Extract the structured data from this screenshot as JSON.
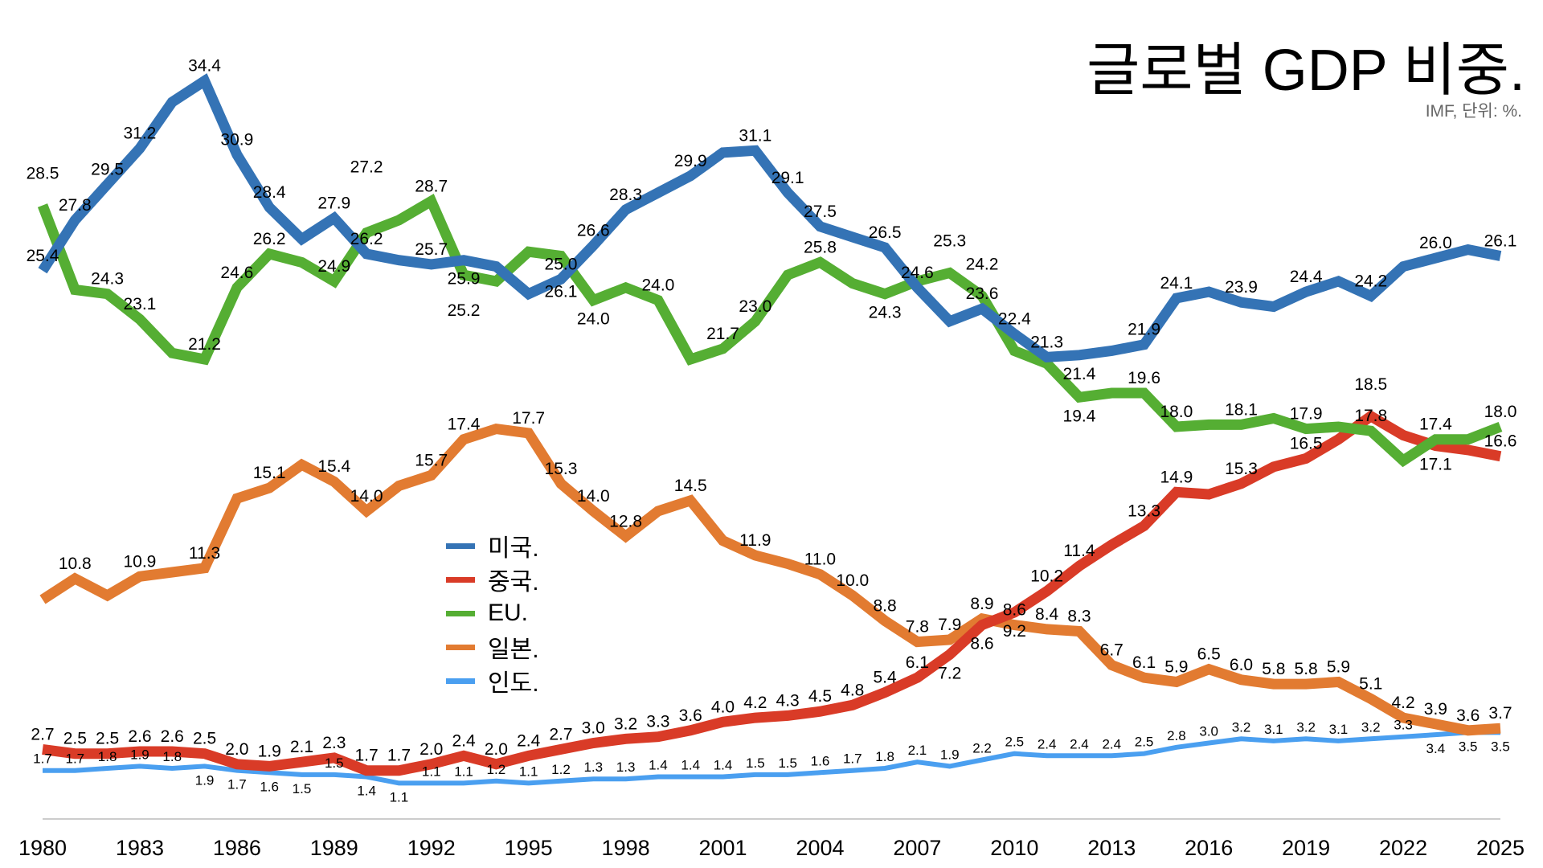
{
  "chart_data": {
    "type": "line",
    "title": "글로벌 GDP 비중.",
    "subtitle": "IMF, 단위: %.",
    "xlabel": "",
    "ylabel": "",
    "x": [
      1980,
      1981,
      1982,
      1983,
      1984,
      1985,
      1986,
      1987,
      1988,
      1989,
      1990,
      1991,
      1992,
      1993,
      1994,
      1995,
      1996,
      1997,
      1998,
      1999,
      2000,
      2001,
      2002,
      2003,
      2004,
      2005,
      2006,
      2007,
      2008,
      2009,
      2010,
      2011,
      2012,
      2013,
      2014,
      2015,
      2016,
      2017,
      2018,
      2019,
      2020,
      2021,
      2022,
      2023,
      2024,
      2025
    ],
    "xticks": [
      "1980",
      "1983",
      "1986",
      "1989",
      "1992",
      "1995",
      "1998",
      "2001",
      "2004",
      "2007",
      "2010",
      "2013",
      "2016",
      "2019",
      "2022",
      "2025"
    ],
    "xlim": [
      1980,
      2025
    ],
    "ylim": [
      -0.6,
      36.6
    ],
    "grid": false,
    "legend_position": "center-left",
    "series": [
      {
        "name": "미국.",
        "color": "#3473b5",
        "width": "thick",
        "values": [
          25.4,
          27.8,
          29.5,
          31.2,
          33.4,
          34.4,
          30.9,
          28.4,
          26.9,
          27.9,
          26.2,
          25.9,
          25.7,
          25.9,
          25.6,
          24.3,
          25.0,
          26.6,
          28.3,
          29.1,
          29.9,
          31.0,
          31.1,
          29.1,
          27.5,
          27.0,
          26.5,
          24.6,
          23.0,
          23.6,
          22.4,
          21.3,
          21.4,
          21.6,
          21.9,
          24.1,
          24.4,
          23.9,
          23.7,
          24.4,
          24.9,
          24.2,
          25.6,
          26.0,
          26.4,
          26.1
        ],
        "hidden_labels": [
          4,
          8,
          11,
          14,
          15,
          19,
          21,
          25,
          28,
          33,
          36,
          38,
          40,
          42,
          44
        ]
      },
      {
        "name": "중국.",
        "color": "#d93b27",
        "width": "thick",
        "values": [
          2.7,
          2.5,
          2.5,
          2.6,
          2.6,
          2.5,
          2.0,
          1.9,
          2.1,
          2.3,
          1.7,
          1.7,
          2.0,
          2.4,
          2.0,
          2.4,
          2.7,
          3.0,
          3.2,
          3.3,
          3.6,
          4.0,
          4.2,
          4.3,
          4.5,
          4.8,
          5.4,
          6.1,
          7.2,
          8.6,
          9.2,
          10.2,
          11.4,
          12.4,
          13.3,
          14.9,
          14.8,
          15.3,
          16.1,
          16.5,
          17.4,
          18.5,
          17.6,
          17.1,
          16.9,
          16.6
        ],
        "hidden_labels": [
          33,
          36,
          38,
          40,
          42,
          44
        ]
      },
      {
        "name": "EU.",
        "color": "#55ae33",
        "width": "thick",
        "values": [
          28.5,
          24.5,
          24.3,
          23.1,
          21.5,
          21.2,
          24.6,
          26.2,
          25.8,
          24.9,
          27.2,
          27.8,
          28.7,
          25.2,
          24.9,
          26.3,
          26.1,
          24.0,
          24.6,
          24.0,
          21.2,
          21.7,
          23.0,
          25.2,
          25.8,
          24.8,
          24.3,
          24.9,
          25.3,
          24.2,
          21.6,
          21.0,
          19.4,
          19.6,
          19.6,
          18.0,
          18.1,
          18.1,
          18.4,
          17.9,
          18.0,
          17.8,
          16.4,
          17.4,
          17.4,
          18.0
        ],
        "hidden_labels": [
          1,
          4,
          8,
          11,
          14,
          15,
          18,
          20,
          23,
          25,
          27,
          30,
          31,
          33,
          36,
          38,
          40,
          42,
          44
        ]
      },
      {
        "name": "일본.",
        "color": "#e27b31",
        "width": "thick",
        "values": [
          9.8,
          10.8,
          10.0,
          10.9,
          11.1,
          11.3,
          14.6,
          15.1,
          16.2,
          15.4,
          14.0,
          15.2,
          15.7,
          17.4,
          17.9,
          17.7,
          15.3,
          14.0,
          12.8,
          14.0,
          14.5,
          12.6,
          11.9,
          11.5,
          11.0,
          10.0,
          8.8,
          7.8,
          7.9,
          8.9,
          8.6,
          8.4,
          8.3,
          6.7,
          6.1,
          5.9,
          6.5,
          6.0,
          5.8,
          5.8,
          5.9,
          5.1,
          4.2,
          3.9,
          3.6,
          3.7
        ],
        "hidden_labels": [
          0,
          2,
          4,
          6,
          8,
          11,
          14,
          19,
          21,
          23
        ]
      },
      {
        "name": "인도.",
        "color": "#4a9ff0",
        "width": "thin",
        "values": [
          1.7,
          1.7,
          1.8,
          1.9,
          1.8,
          1.9,
          1.7,
          1.6,
          1.5,
          1.5,
          1.4,
          1.1,
          1.1,
          1.1,
          1.2,
          1.1,
          1.2,
          1.3,
          1.3,
          1.4,
          1.4,
          1.4,
          1.5,
          1.5,
          1.6,
          1.7,
          1.8,
          2.1,
          1.9,
          2.2,
          2.5,
          2.4,
          2.4,
          2.4,
          2.5,
          2.8,
          3.0,
          3.2,
          3.1,
          3.2,
          3.1,
          3.2,
          3.3,
          3.4,
          3.5,
          3.5
        ],
        "hidden_labels": []
      }
    ]
  }
}
